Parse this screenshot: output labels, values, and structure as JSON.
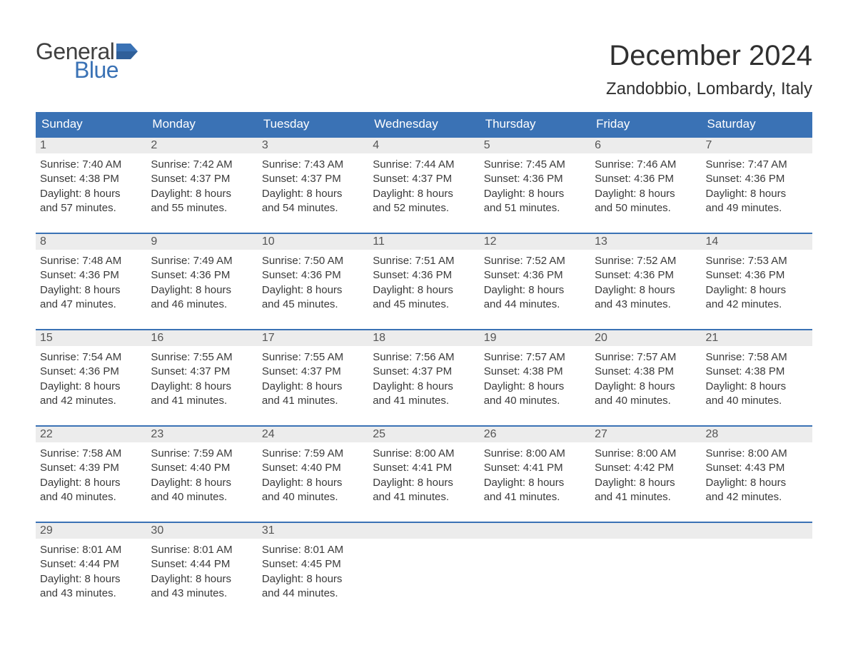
{
  "brand": {
    "word1": "General",
    "word2": "Blue",
    "flag_color": "#3a72b5"
  },
  "title": "December 2024",
  "location": "Zandobbio, Lombardy, Italy",
  "colors": {
    "header_bg": "#3a72b5",
    "header_text": "#ffffff",
    "daynum_bg": "#ececec",
    "daynum_border": "#3a72b5",
    "body_text": "#3a3a3a",
    "page_bg": "#ffffff"
  },
  "day_headers": [
    "Sunday",
    "Monday",
    "Tuesday",
    "Wednesday",
    "Thursday",
    "Friday",
    "Saturday"
  ],
  "weeks": [
    [
      {
        "n": "1",
        "sr": "7:40 AM",
        "ss": "4:38 PM",
        "dm": "57"
      },
      {
        "n": "2",
        "sr": "7:42 AM",
        "ss": "4:37 PM",
        "dm": "55"
      },
      {
        "n": "3",
        "sr": "7:43 AM",
        "ss": "4:37 PM",
        "dm": "54"
      },
      {
        "n": "4",
        "sr": "7:44 AM",
        "ss": "4:37 PM",
        "dm": "52"
      },
      {
        "n": "5",
        "sr": "7:45 AM",
        "ss": "4:36 PM",
        "dm": "51"
      },
      {
        "n": "6",
        "sr": "7:46 AM",
        "ss": "4:36 PM",
        "dm": "50"
      },
      {
        "n": "7",
        "sr": "7:47 AM",
        "ss": "4:36 PM",
        "dm": "49"
      }
    ],
    [
      {
        "n": "8",
        "sr": "7:48 AM",
        "ss": "4:36 PM",
        "dm": "47"
      },
      {
        "n": "9",
        "sr": "7:49 AM",
        "ss": "4:36 PM",
        "dm": "46"
      },
      {
        "n": "10",
        "sr": "7:50 AM",
        "ss": "4:36 PM",
        "dm": "45"
      },
      {
        "n": "11",
        "sr": "7:51 AM",
        "ss": "4:36 PM",
        "dm": "45"
      },
      {
        "n": "12",
        "sr": "7:52 AM",
        "ss": "4:36 PM",
        "dm": "44"
      },
      {
        "n": "13",
        "sr": "7:52 AM",
        "ss": "4:36 PM",
        "dm": "43"
      },
      {
        "n": "14",
        "sr": "7:53 AM",
        "ss": "4:36 PM",
        "dm": "42"
      }
    ],
    [
      {
        "n": "15",
        "sr": "7:54 AM",
        "ss": "4:36 PM",
        "dm": "42"
      },
      {
        "n": "16",
        "sr": "7:55 AM",
        "ss": "4:37 PM",
        "dm": "41"
      },
      {
        "n": "17",
        "sr": "7:55 AM",
        "ss": "4:37 PM",
        "dm": "41"
      },
      {
        "n": "18",
        "sr": "7:56 AM",
        "ss": "4:37 PM",
        "dm": "41"
      },
      {
        "n": "19",
        "sr": "7:57 AM",
        "ss": "4:38 PM",
        "dm": "40"
      },
      {
        "n": "20",
        "sr": "7:57 AM",
        "ss": "4:38 PM",
        "dm": "40"
      },
      {
        "n": "21",
        "sr": "7:58 AM",
        "ss": "4:38 PM",
        "dm": "40"
      }
    ],
    [
      {
        "n": "22",
        "sr": "7:58 AM",
        "ss": "4:39 PM",
        "dm": "40"
      },
      {
        "n": "23",
        "sr": "7:59 AM",
        "ss": "4:40 PM",
        "dm": "40"
      },
      {
        "n": "24",
        "sr": "7:59 AM",
        "ss": "4:40 PM",
        "dm": "40"
      },
      {
        "n": "25",
        "sr": "8:00 AM",
        "ss": "4:41 PM",
        "dm": "41"
      },
      {
        "n": "26",
        "sr": "8:00 AM",
        "ss": "4:41 PM",
        "dm": "41"
      },
      {
        "n": "27",
        "sr": "8:00 AM",
        "ss": "4:42 PM",
        "dm": "41"
      },
      {
        "n": "28",
        "sr": "8:00 AM",
        "ss": "4:43 PM",
        "dm": "42"
      }
    ],
    [
      {
        "n": "29",
        "sr": "8:01 AM",
        "ss": "4:44 PM",
        "dm": "43"
      },
      {
        "n": "30",
        "sr": "8:01 AM",
        "ss": "4:44 PM",
        "dm": "43"
      },
      {
        "n": "31",
        "sr": "8:01 AM",
        "ss": "4:45 PM",
        "dm": "44"
      },
      null,
      null,
      null,
      null
    ]
  ],
  "labels": {
    "sunrise_prefix": "Sunrise: ",
    "sunset_prefix": "Sunset: ",
    "daylight_line1_prefix": "Daylight: ",
    "daylight_hours": "8 hours",
    "daylight_line2_prefix": "and ",
    "daylight_line2_suffix": " minutes."
  }
}
